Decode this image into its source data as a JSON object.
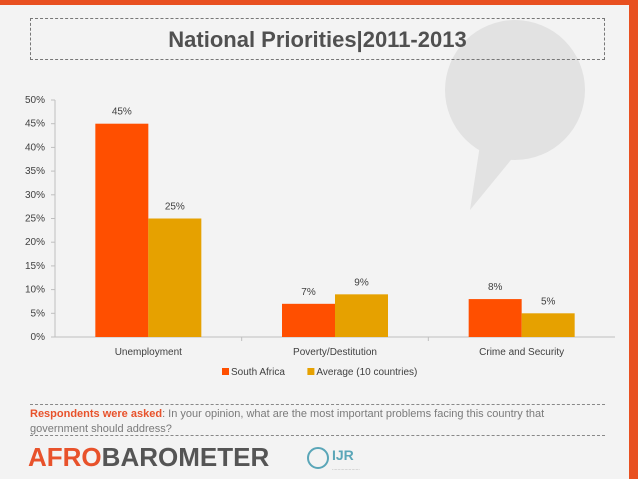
{
  "slide": {
    "title": "National Priorities|2011-2013",
    "question_lead": "Respondents were asked",
    "question_text": ": In your opinion, what are the most important problems facing this country that government should address?",
    "logo_part1": "AFRO",
    "logo_part2": "BAROMETER",
    "partner_logo_text": "IJR"
  },
  "colors": {
    "south_africa": "#ff4f00",
    "average": "#e6a100",
    "brand_orange": "#e8522b",
    "right_bar": "#e85020"
  },
  "chart_data": {
    "type": "bar",
    "categories": [
      "Unemployment",
      "Poverty/Destitution",
      "Crime and Security"
    ],
    "series": [
      {
        "name": "South Africa",
        "values": [
          45,
          7,
          8
        ],
        "labels": [
          "45%",
          "7%",
          "8%"
        ]
      },
      {
        "name": "Average (10 countries)",
        "values": [
          25,
          9,
          5
        ],
        "labels": [
          "25%",
          "9%",
          "5%"
        ]
      }
    ],
    "ylim": [
      0,
      50
    ],
    "yticks": [
      "0%",
      "5%",
      "10%",
      "15%",
      "20%",
      "25%",
      "30%",
      "35%",
      "40%",
      "45%",
      "50%"
    ],
    "grid": false,
    "legend": "bottom"
  }
}
